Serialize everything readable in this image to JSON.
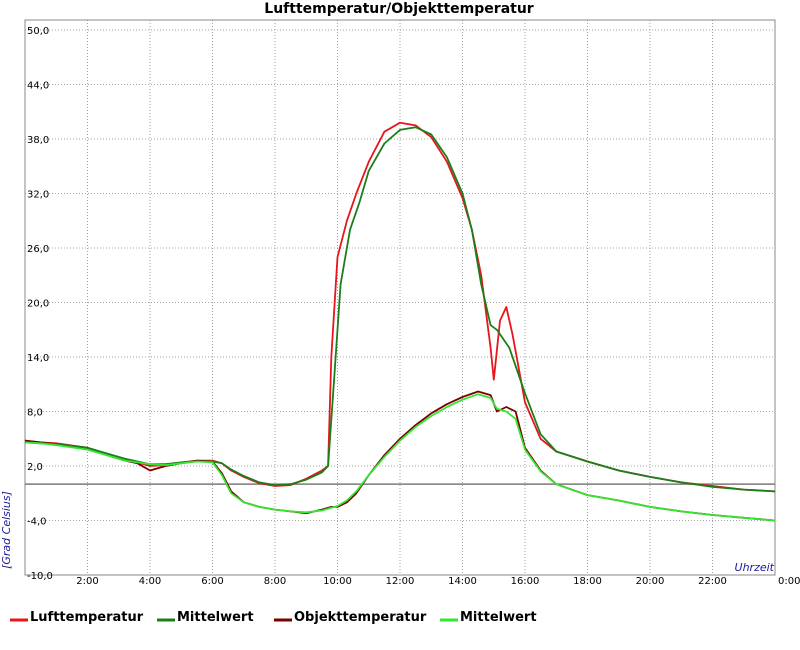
{
  "chart_data": {
    "type": "line",
    "title": "Lufttemperatur/Objekttemperatur",
    "xlabel": "Uhrzeit",
    "ylabel": "[Grad Celsius]",
    "xlim": [
      0,
      24
    ],
    "ylim": [
      -10,
      50
    ],
    "y_ticks": [
      -10,
      -4,
      2,
      8,
      14,
      20,
      26,
      32,
      38,
      44,
      50
    ],
    "y_tick_labels": [
      "-10,0",
      "-4,0",
      "2,0",
      "8,0",
      "14,0",
      "20,0",
      "26,0",
      "32,0",
      "38,0",
      "44,0",
      "50,0"
    ],
    "x_ticks": [
      2,
      4,
      6,
      8,
      10,
      12,
      14,
      16,
      18,
      20,
      22,
      24
    ],
    "x_tick_labels": [
      "2:00",
      "4:00",
      "6:00",
      "8:00",
      "10:00",
      "12:00",
      "14:00",
      "16:00",
      "18:00",
      "20:00",
      "22:00",
      "0:00"
    ],
    "reference_line": 0,
    "grid": true,
    "legend_position": "bottom",
    "series": [
      {
        "name": "Lufttemperatur",
        "color": "#e8151b",
        "x": [
          0,
          0.5,
          1,
          2,
          2.8,
          3.2,
          3.6,
          4,
          4.5,
          5,
          5.5,
          6,
          6.3,
          6.6,
          7,
          7.5,
          8,
          8.5,
          9,
          9.5,
          9.7,
          9.8,
          10.0,
          10.3,
          10.6,
          11,
          11.5,
          12,
          12.5,
          13,
          13.5,
          14,
          14.3,
          14.6,
          14.9,
          15.0,
          15.2,
          15.4,
          15.6,
          16,
          16.5,
          17,
          18,
          19,
          20,
          21,
          22,
          23,
          24
        ],
        "y": [
          4.8,
          4.6,
          4.5,
          4.0,
          3.0,
          2.7,
          2.4,
          2.0,
          2.1,
          2.4,
          2.6,
          2.6,
          2.3,
          1.5,
          0.8,
          0.1,
          -0.2,
          -0.1,
          0.6,
          1.5,
          2.0,
          14.0,
          25.0,
          29.0,
          32.0,
          35.5,
          38.8,
          39.8,
          39.5,
          38.2,
          35.5,
          31.5,
          28.0,
          23.0,
          15.0,
          11.5,
          18.0,
          19.5,
          16.5,
          9.0,
          5.0,
          3.6,
          2.5,
          1.5,
          0.8,
          0.2,
          -0.2,
          -0.6,
          -0.8
        ]
      },
      {
        "name": "Mittelwert",
        "color": "#1a7f1a",
        "x": [
          0,
          0.5,
          1,
          2,
          2.8,
          3.2,
          3.6,
          4,
          4.5,
          5,
          5.5,
          6,
          6.3,
          6.6,
          7,
          7.5,
          8,
          8.5,
          9,
          9.5,
          9.7,
          9.9,
          10.1,
          10.4,
          10.7,
          11,
          11.5,
          12,
          12.5,
          13,
          13.5,
          14,
          14.3,
          14.6,
          14.9,
          15.1,
          15.5,
          16,
          16.5,
          17,
          18,
          19,
          20,
          21,
          22,
          23,
          24
        ],
        "y": [
          4.6,
          4.5,
          4.4,
          4.0,
          3.2,
          2.8,
          2.5,
          2.2,
          2.2,
          2.4,
          2.5,
          2.5,
          2.3,
          1.6,
          0.9,
          0.2,
          -0.1,
          0.0,
          0.5,
          1.3,
          2.0,
          12.0,
          22.0,
          28.0,
          31.0,
          34.5,
          37.5,
          39.0,
          39.3,
          38.5,
          36.0,
          32.0,
          28.0,
          22.0,
          17.5,
          17.0,
          15.0,
          10.0,
          5.5,
          3.6,
          2.5,
          1.5,
          0.8,
          0.2,
          -0.3,
          -0.6,
          -0.8
        ]
      },
      {
        "name": "Objekttemperatur",
        "color": "#7a0000",
        "x": [
          0,
          0.5,
          1,
          2,
          2.8,
          3.2,
          3.6,
          4,
          4.5,
          5,
          5.5,
          6,
          6.3,
          6.6,
          7,
          7.5,
          8,
          8.5,
          9,
          9.5,
          9.8,
          10.0,
          10.3,
          10.6,
          11,
          11.5,
          12,
          12.5,
          13,
          13.5,
          14,
          14.5,
          14.9,
          15.1,
          15.4,
          15.7,
          16,
          16.5,
          17,
          18,
          19,
          20,
          21,
          22,
          23,
          24
        ],
        "y": [
          4.8,
          4.6,
          4.4,
          4.0,
          3.0,
          2.6,
          2.3,
          1.5,
          2.0,
          2.3,
          2.6,
          2.5,
          1.2,
          -0.8,
          -2.0,
          -2.5,
          -2.8,
          -3.0,
          -3.2,
          -2.8,
          -2.5,
          -2.5,
          -2.0,
          -1.0,
          1.0,
          3.2,
          5.0,
          6.5,
          7.8,
          8.8,
          9.6,
          10.2,
          9.8,
          8.0,
          8.5,
          8.0,
          4.0,
          1.5,
          0.0,
          -1.2,
          -1.8,
          -2.5,
          -3.0,
          -3.4,
          -3.7,
          -4.0
        ]
      },
      {
        "name": "Mittelwert",
        "color": "#33e633",
        "x": [
          0,
          0.5,
          1,
          2,
          2.8,
          3.2,
          3.6,
          4,
          4.5,
          5,
          5.5,
          6,
          6.3,
          6.6,
          7,
          7.5,
          8,
          8.5,
          9,
          9.5,
          9.8,
          10.0,
          10.3,
          10.6,
          11,
          11.5,
          12,
          12.5,
          13,
          13.5,
          14,
          14.5,
          14.9,
          15.1,
          15.4,
          15.7,
          16,
          16.5,
          17,
          18,
          19,
          20,
          21,
          22,
          23,
          24
        ],
        "y": [
          4.6,
          4.5,
          4.3,
          3.8,
          3.0,
          2.6,
          2.4,
          2.2,
          2.1,
          2.3,
          2.5,
          2.4,
          1.0,
          -1.0,
          -2.0,
          -2.5,
          -2.8,
          -3.0,
          -3.1,
          -2.9,
          -2.6,
          -2.4,
          -1.8,
          -0.8,
          1.0,
          3.0,
          4.8,
          6.3,
          7.5,
          8.5,
          9.3,
          9.9,
          9.5,
          8.3,
          8.0,
          7.2,
          3.8,
          1.4,
          0.0,
          -1.2,
          -1.8,
          -2.5,
          -3.0,
          -3.4,
          -3.7,
          -4.0
        ]
      }
    ]
  }
}
